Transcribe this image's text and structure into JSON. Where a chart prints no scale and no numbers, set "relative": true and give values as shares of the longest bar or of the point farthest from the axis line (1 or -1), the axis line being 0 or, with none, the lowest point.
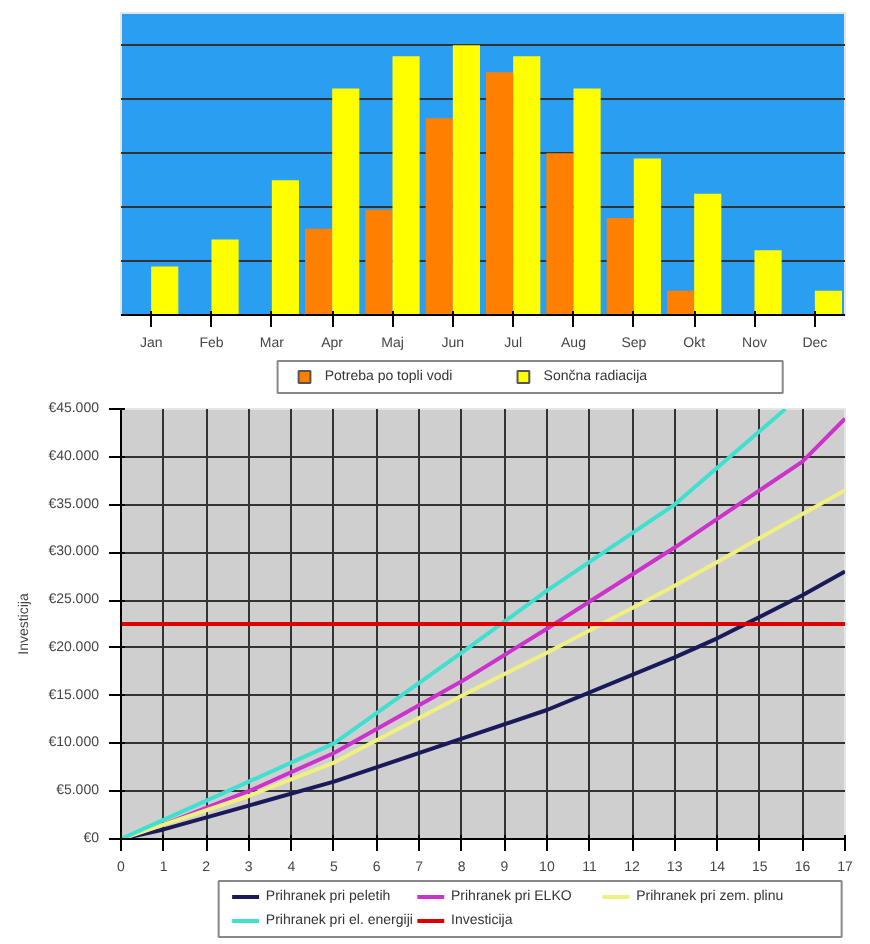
{
  "chart_data": [
    {
      "type": "bar",
      "relative": true,
      "grid": "y",
      "legend": "bottom",
      "categories": [
        "Jan",
        "Feb",
        "Mar",
        "Apr",
        "Maj",
        "Jun",
        "Jul",
        "Aug",
        "Sep",
        "Okt",
        "Nov",
        "Dec"
      ],
      "series": [
        {
          "name": "Potreba po topli vodi",
          "color": "#ff8000",
          "values": [
            null,
            null,
            null,
            0.32,
            0.39,
            0.73,
            0.9,
            0.6,
            0.36,
            0.09,
            null,
            null
          ]
        },
        {
          "name": "Sončna radiacija",
          "color": "#ffff00",
          "values": [
            0.18,
            0.28,
            0.5,
            0.84,
            0.96,
            1.0,
            0.96,
            0.84,
            0.58,
            0.45,
            0.24,
            0.09
          ]
        }
      ]
    },
    {
      "type": "line",
      "ylabel": "Investicija",
      "grid": true,
      "legend": "bottom",
      "line_style": "solid",
      "marker": "none",
      "x": [
        0,
        1,
        3,
        5,
        8,
        10,
        13,
        14,
        16,
        17
      ],
      "xlim": [
        0,
        17
      ],
      "xticks": [
        0,
        1,
        2,
        3,
        4,
        5,
        6,
        7,
        8,
        9,
        10,
        11,
        12,
        13,
        14,
        15,
        16,
        17
      ],
      "ylim": [
        0,
        45000
      ],
      "yticks": [
        {
          "value": 0,
          "label": "€0"
        },
        {
          "value": 5000,
          "label": "€5.000"
        },
        {
          "value": 10000,
          "label": "€10.000"
        },
        {
          "value": 15000,
          "label": "€15.000"
        },
        {
          "value": 20000,
          "label": "€20.000"
        },
        {
          "value": 25000,
          "label": "€25.000"
        },
        {
          "value": 30000,
          "label": "€30.000"
        },
        {
          "value": 35000,
          "label": "€35.000"
        },
        {
          "value": 40000,
          "label": "€40.000"
        },
        {
          "value": 45000,
          "label": "€45.000"
        }
      ],
      "series": [
        {
          "name": "Prihranek pri peletih",
          "color": "#1a1a5a",
          "values": [
            0,
            1000,
            3500,
            6000,
            10500,
            13500,
            19000,
            21000,
            25500,
            28000
          ]
        },
        {
          "name": "Prihranek pri ELKO",
          "color": "#cc33cc",
          "values": [
            0,
            1500,
            5000,
            9000,
            16500,
            22000,
            30500,
            33500,
            39500,
            44000
          ]
        },
        {
          "name": "Prihranek pri zem. plinu",
          "color": "#f0f080",
          "values": [
            0,
            1500,
            4500,
            8000,
            15000,
            19500,
            26500,
            29000,
            34000,
            36500
          ]
        },
        {
          "name": "Prihranek pri el. energiji",
          "color": "#40e0d0",
          "x": [
            0,
            1,
            3,
            5,
            8,
            10,
            13,
            15.6
          ],
          "values": [
            0,
            2000,
            6000,
            10000,
            19500,
            26000,
            35000,
            45000
          ]
        },
        {
          "name": "Investicija",
          "color": "#dd0000",
          "x": [
            0,
            17
          ],
          "values": [
            22500,
            22500
          ]
        }
      ]
    }
  ]
}
